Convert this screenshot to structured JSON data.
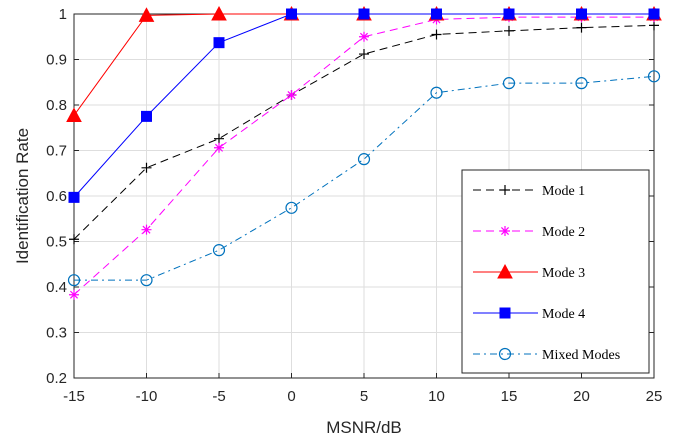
{
  "chart_data": {
    "type": "line",
    "title": "",
    "xlabel": "MSNR/dB",
    "ylabel": "Identification Rate",
    "x": [
      -15,
      -10,
      -5,
      0,
      5,
      10,
      15,
      20,
      25
    ],
    "xlim": [
      -15,
      25
    ],
    "ylim": [
      0.2,
      1
    ],
    "xticks": [
      -15,
      -10,
      -5,
      0,
      5,
      10,
      15,
      20,
      25
    ],
    "yticks": [
      0.2,
      0.3,
      0.4,
      0.5,
      0.6,
      0.7,
      0.8,
      0.9,
      1
    ],
    "xtick_labels": [
      "-15",
      "-10",
      "-5",
      "0",
      "5",
      "10",
      "15",
      "20",
      "25"
    ],
    "ytick_labels": [
      "0.2",
      "0.3",
      "0.4",
      "0.5",
      "0.6",
      "0.7",
      "0.8",
      "0.9",
      "1"
    ],
    "grid": true,
    "legend_position": "bottom-right",
    "series": [
      {
        "name": "Mode 1",
        "color": "#000000",
        "dash": "8,5",
        "marker": "plus",
        "values": [
          0.505,
          0.662,
          0.726,
          0.822,
          0.912,
          0.955,
          0.963,
          0.97,
          0.975
        ]
      },
      {
        "name": "Mode 2",
        "color": "#ff00ff",
        "dash": "8,5",
        "marker": "asterisk",
        "values": [
          0.383,
          0.526,
          0.706,
          0.822,
          0.95,
          0.988,
          0.993,
          0.993,
          0.993
        ]
      },
      {
        "name": "Mode 3",
        "color": "#ff0000",
        "dash": "",
        "marker": "triangle",
        "values": [
          0.777,
          0.997,
          1.0,
          1.0,
          1.0,
          1.0,
          1.0,
          1.0,
          1.0
        ]
      },
      {
        "name": "Mode 4",
        "color": "#0000ff",
        "dash": "",
        "marker": "square",
        "values": [
          0.597,
          0.775,
          0.937,
          1.0,
          1.0,
          1.0,
          1.0,
          1.0,
          1.0
        ]
      },
      {
        "name": "Mixed Modes",
        "color": "#0072bd",
        "dash": "7,4,2,4",
        "marker": "circle",
        "values": [
          0.415,
          0.415,
          0.481,
          0.574,
          0.681,
          0.827,
          0.848,
          0.848,
          0.863
        ]
      }
    ]
  }
}
